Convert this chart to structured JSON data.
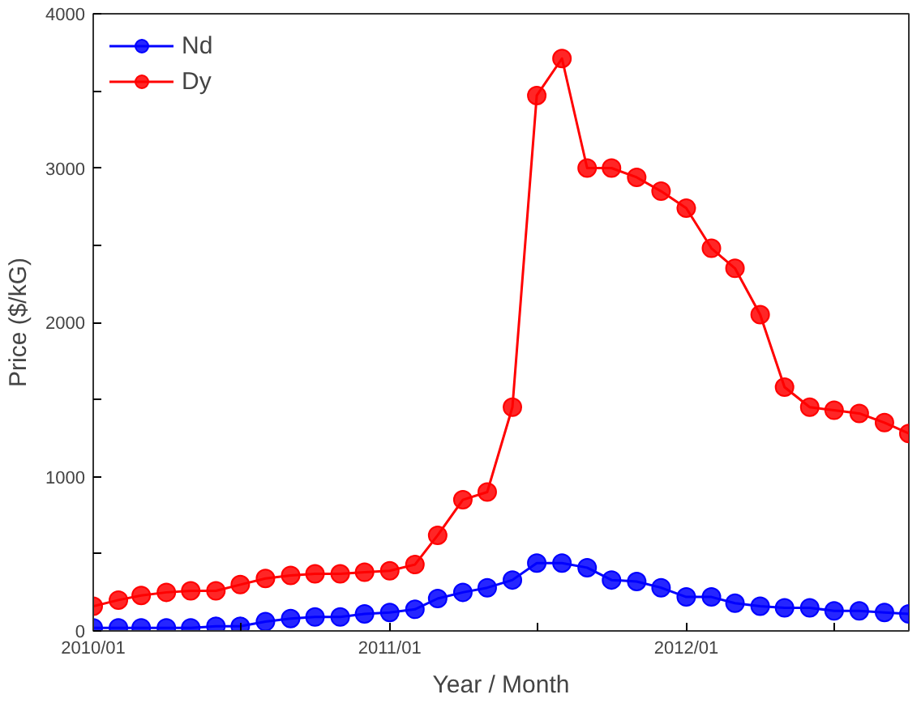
{
  "chart_data": {
    "type": "line",
    "xlabel": "Year / Month",
    "ylabel": "Price ($/kG)",
    "x": [
      "2010-01",
      "2010-02",
      "2010-03",
      "2010-04",
      "2010-05",
      "2010-06",
      "2010-07",
      "2010-08",
      "2010-09",
      "2010-10",
      "2010-11",
      "2010-12",
      "2011-01",
      "2011-02",
      "2011-03",
      "2011-04",
      "2011-05",
      "2011-06",
      "2011-07",
      "2011-08",
      "2011-09",
      "2011-10",
      "2011-11",
      "2011-12",
      "2012-01",
      "2012-02",
      "2012-03",
      "2012-04",
      "2012-05",
      "2012-06",
      "2012-07",
      "2012-08",
      "2012-09",
      "2012-10"
    ],
    "series": [
      {
        "name": "Nd",
        "color": "#0000ff",
        "values": [
          20,
          20,
          20,
          20,
          20,
          30,
          30,
          60,
          80,
          90,
          90,
          110,
          120,
          140,
          210,
          250,
          280,
          330,
          440,
          440,
          410,
          330,
          320,
          280,
          220,
          220,
          180,
          160,
          150,
          150,
          130,
          130,
          120,
          110
        ]
      },
      {
        "name": "Dy",
        "color": "#ff0000",
        "values": [
          160,
          200,
          230,
          250,
          260,
          260,
          300,
          340,
          360,
          370,
          370,
          380,
          390,
          430,
          620,
          850,
          900,
          1450,
          3470,
          3710,
          3000,
          3000,
          2940,
          2850,
          2740,
          2480,
          2350,
          2050,
          1580,
          1450,
          1430,
          1410,
          1350,
          1280
        ]
      }
    ],
    "xlim": [
      "2010-01",
      "2012-10"
    ],
    "xticks": [
      {
        "value": "2010-01",
        "label": "2010/01"
      },
      {
        "value": "2010-07",
        "label": null
      },
      {
        "value": "2011-01",
        "label": "2011/01"
      },
      {
        "value": "2011-07",
        "label": null
      },
      {
        "value": "2012-01",
        "label": "2012/01"
      },
      {
        "value": "2012-07",
        "label": null
      }
    ],
    "ylim": [
      0,
      4000
    ],
    "yticks": [
      0,
      {
        "value": 500,
        "label": null
      },
      1000,
      {
        "value": 1500,
        "label": null
      },
      2000,
      {
        "value": 2500,
        "label": null
      },
      3000,
      {
        "value": 3500,
        "label": null
      },
      4000
    ],
    "legend": "top left",
    "marker": "circle",
    "line_style": "solid",
    "grid": false
  }
}
